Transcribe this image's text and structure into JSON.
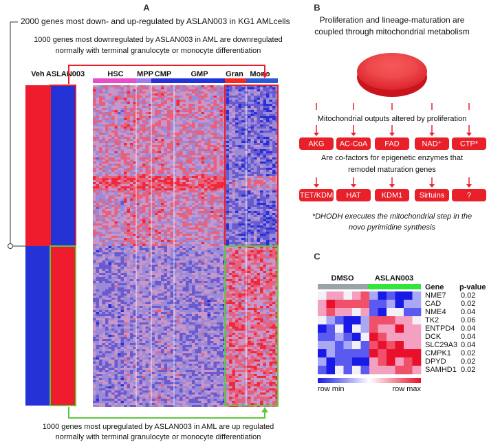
{
  "panel_a": {
    "label": "A",
    "title": "2000 genes most down- and up-regulated by ASLAN003 in KG1 AMLcells",
    "top_note": [
      "1000 genes most downregulated by ASLAN003 in AML are downregulated",
      "normally with terminal granulocyte or monocyte differentiation"
    ],
    "columns": [
      "Veh",
      "ASLAN003"
    ],
    "groups": [
      "HSC",
      "MPP",
      "CMP",
      "GMP",
      "Gran",
      "Mono"
    ],
    "bottom_note": [
      "1000 genes most upregulated by ASLAN003 in AML are up regulated",
      "normally with terminal granulocyte or monocyte differentiation"
    ]
  },
  "panel_b": {
    "label": "B",
    "title": [
      "Proliferation and lineage-maturation are",
      "coupled through mitochondrial metabolism"
    ],
    "outputs_text": "Mitochondrial outputs altered by proliferation",
    "outputs": [
      "AKG",
      "AC-CoA",
      "FAD",
      "NAD⁺",
      "CTP*"
    ],
    "cofactor_text": [
      "Are co-factors for epigenetic enzymes that",
      "remodel maturation genes"
    ],
    "enzymes": [
      "TET/KDM",
      "HAT",
      "KDM1",
      "Sirtuins",
      "?"
    ],
    "footnote": [
      "*DHODH executes the mitochondrial step in the",
      "novo pyrimidine synthesis"
    ]
  },
  "panel_c": {
    "label": "C",
    "groups": [
      "DMSO",
      "ASLAN003"
    ],
    "gene_header": "Gene",
    "pvalue_header": "p-value",
    "rows": [
      [
        "NME7",
        "0.02"
      ],
      [
        "CAD",
        "0.02"
      ],
      [
        "NME4",
        "0.04"
      ],
      [
        "TK2",
        "0.06"
      ],
      [
        "ENTPD4",
        "0.04"
      ],
      [
        "DCK",
        "0.04"
      ],
      [
        "SLC29A3",
        "0.04"
      ],
      [
        "CMPK1",
        "0.02"
      ],
      [
        "DPYD",
        "0.02"
      ],
      [
        "SAMHD1",
        "0.02"
      ]
    ],
    "legend_min": "row min",
    "legend_max": "row max"
  }
}
